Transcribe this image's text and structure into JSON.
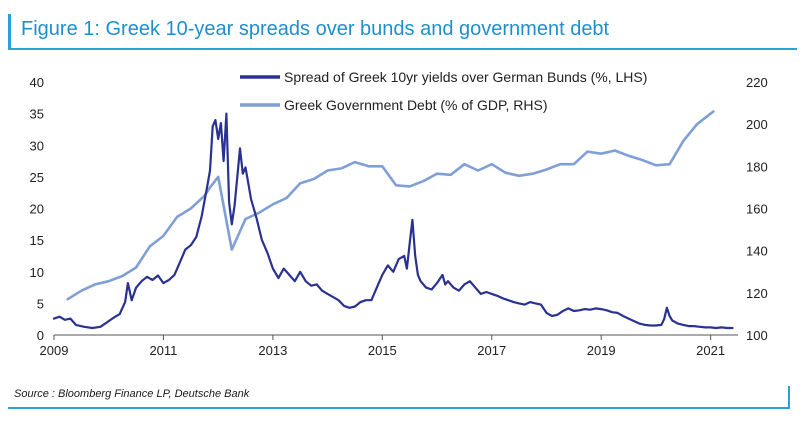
{
  "figure": {
    "title": "Figure 1: Greek 10-year spreads over bunds and government debt",
    "source": "Source : Bloomberg Finance LP, Deutsche Bank"
  },
  "chart_data": {
    "type": "line",
    "x_ticks": [
      "2009",
      "2011",
      "2013",
      "2015",
      "2017",
      "2019",
      "2021"
    ],
    "x_range": [
      2009.0,
      2021.5
    ],
    "y_left": {
      "ticks": [
        "0",
        "5",
        "10",
        "15",
        "20",
        "25",
        "30",
        "35",
        "40"
      ],
      "range": [
        0,
        40
      ]
    },
    "y_right": {
      "ticks": [
        "100",
        "120",
        "140",
        "160",
        "180",
        "200",
        "220"
      ],
      "range": [
        100,
        220
      ]
    },
    "grid": false,
    "legend_position": "top-right",
    "series": [
      {
        "name": "Spread of Greek 10yr yields over German Bunds (%, LHS)",
        "axis": "left",
        "color": "#2a3291",
        "points": [
          [
            2009.0,
            2.6
          ],
          [
            2009.1,
            2.9
          ],
          [
            2009.2,
            2.4
          ],
          [
            2009.3,
            2.6
          ],
          [
            2009.4,
            1.6
          ],
          [
            2009.55,
            1.3
          ],
          [
            2009.7,
            1.1
          ],
          [
            2009.85,
            1.3
          ],
          [
            2010.0,
            2.2
          ],
          [
            2010.1,
            2.8
          ],
          [
            2010.2,
            3.3
          ],
          [
            2010.3,
            5.2
          ],
          [
            2010.35,
            8.2
          ],
          [
            2010.42,
            5.5
          ],
          [
            2010.5,
            7.5
          ],
          [
            2010.6,
            8.5
          ],
          [
            2010.7,
            9.2
          ],
          [
            2010.8,
            8.7
          ],
          [
            2010.9,
            9.4
          ],
          [
            2011.0,
            8.2
          ],
          [
            2011.1,
            8.7
          ],
          [
            2011.2,
            9.5
          ],
          [
            2011.3,
            11.5
          ],
          [
            2011.4,
            13.5
          ],
          [
            2011.5,
            14.2
          ],
          [
            2011.6,
            15.5
          ],
          [
            2011.7,
            18.8
          ],
          [
            2011.8,
            23.5
          ],
          [
            2011.85,
            26.0
          ],
          [
            2011.9,
            33.0
          ],
          [
            2011.95,
            34.0
          ],
          [
            2012.0,
            31.0
          ],
          [
            2012.05,
            33.5
          ],
          [
            2012.1,
            27.5
          ],
          [
            2012.15,
            35.0
          ],
          [
            2012.2,
            21.0
          ],
          [
            2012.25,
            17.5
          ],
          [
            2012.3,
            20.5
          ],
          [
            2012.35,
            25.0
          ],
          [
            2012.4,
            29.5
          ],
          [
            2012.45,
            25.5
          ],
          [
            2012.5,
            26.5
          ],
          [
            2012.55,
            24.0
          ],
          [
            2012.6,
            21.5
          ],
          [
            2012.7,
            18.5
          ],
          [
            2012.8,
            15.0
          ],
          [
            2012.9,
            13.0
          ],
          [
            2013.0,
            10.5
          ],
          [
            2013.1,
            9.0
          ],
          [
            2013.2,
            10.5
          ],
          [
            2013.3,
            9.5
          ],
          [
            2013.4,
            8.5
          ],
          [
            2013.5,
            10.0
          ],
          [
            2013.6,
            8.5
          ],
          [
            2013.7,
            7.8
          ],
          [
            2013.8,
            8.0
          ],
          [
            2013.9,
            7.0
          ],
          [
            2014.0,
            6.5
          ],
          [
            2014.1,
            6.0
          ],
          [
            2014.2,
            5.5
          ],
          [
            2014.3,
            4.6
          ],
          [
            2014.4,
            4.3
          ],
          [
            2014.5,
            4.5
          ],
          [
            2014.6,
            5.2
          ],
          [
            2014.7,
            5.5
          ],
          [
            2014.8,
            5.5
          ],
          [
            2014.9,
            7.5
          ],
          [
            2015.0,
            9.5
          ],
          [
            2015.1,
            11.0
          ],
          [
            2015.2,
            10.0
          ],
          [
            2015.3,
            12.0
          ],
          [
            2015.4,
            12.5
          ],
          [
            2015.45,
            10.5
          ],
          [
            2015.5,
            14.5
          ],
          [
            2015.55,
            18.2
          ],
          [
            2015.6,
            12.5
          ],
          [
            2015.65,
            9.5
          ],
          [
            2015.7,
            8.5
          ],
          [
            2015.8,
            7.5
          ],
          [
            2015.9,
            7.2
          ],
          [
            2016.0,
            8.2
          ],
          [
            2016.1,
            9.5
          ],
          [
            2016.15,
            8.0
          ],
          [
            2016.2,
            8.5
          ],
          [
            2016.3,
            7.5
          ],
          [
            2016.4,
            7.0
          ],
          [
            2016.5,
            8.0
          ],
          [
            2016.6,
            8.5
          ],
          [
            2016.7,
            7.5
          ],
          [
            2016.8,
            6.5
          ],
          [
            2016.9,
            6.8
          ],
          [
            2017.0,
            6.5
          ],
          [
            2017.1,
            6.2
          ],
          [
            2017.2,
            5.8
          ],
          [
            2017.3,
            5.5
          ],
          [
            2017.4,
            5.2
          ],
          [
            2017.5,
            5.0
          ],
          [
            2017.6,
            4.8
          ],
          [
            2017.7,
            5.2
          ],
          [
            2017.8,
            5.0
          ],
          [
            2017.9,
            4.8
          ],
          [
            2018.0,
            3.5
          ],
          [
            2018.1,
            3.0
          ],
          [
            2018.2,
            3.2
          ],
          [
            2018.3,
            3.8
          ],
          [
            2018.4,
            4.2
          ],
          [
            2018.5,
            3.8
          ],
          [
            2018.6,
            3.9
          ],
          [
            2018.7,
            4.1
          ],
          [
            2018.8,
            4.0
          ],
          [
            2018.9,
            4.2
          ],
          [
            2019.0,
            4.1
          ],
          [
            2019.1,
            3.9
          ],
          [
            2019.2,
            3.6
          ],
          [
            2019.3,
            3.5
          ],
          [
            2019.4,
            3.0
          ],
          [
            2019.5,
            2.6
          ],
          [
            2019.6,
            2.2
          ],
          [
            2019.7,
            1.8
          ],
          [
            2019.8,
            1.6
          ],
          [
            2019.9,
            1.5
          ],
          [
            2020.0,
            1.5
          ],
          [
            2020.1,
            1.6
          ],
          [
            2020.15,
            2.5
          ],
          [
            2020.2,
            4.3
          ],
          [
            2020.25,
            3.0
          ],
          [
            2020.3,
            2.3
          ],
          [
            2020.4,
            1.8
          ],
          [
            2020.5,
            1.6
          ],
          [
            2020.6,
            1.4
          ],
          [
            2020.7,
            1.4
          ],
          [
            2020.8,
            1.3
          ],
          [
            2020.9,
            1.2
          ],
          [
            2021.0,
            1.2
          ],
          [
            2021.1,
            1.1
          ],
          [
            2021.2,
            1.2
          ],
          [
            2021.3,
            1.1
          ],
          [
            2021.4,
            1.1
          ]
        ]
      },
      {
        "name": "Greek Government Debt (% of GDP, RHS)",
        "axis": "right",
        "color": "#7f9fd6",
        "points": [
          [
            2009.25,
            117.0
          ],
          [
            2009.5,
            121.0
          ],
          [
            2009.75,
            124.0
          ],
          [
            2010.0,
            125.5
          ],
          [
            2010.25,
            128.0
          ],
          [
            2010.5,
            132.0
          ],
          [
            2010.75,
            142.0
          ],
          [
            2011.0,
            147.0
          ],
          [
            2011.25,
            156.0
          ],
          [
            2011.5,
            160.0
          ],
          [
            2011.75,
            166.0
          ],
          [
            2011.85,
            170.0
          ],
          [
            2012.0,
            175.0
          ],
          [
            2012.25,
            140.5
          ],
          [
            2012.5,
            155.0
          ],
          [
            2012.75,
            158.0
          ],
          [
            2013.0,
            162.0
          ],
          [
            2013.25,
            165.0
          ],
          [
            2013.5,
            172.0
          ],
          [
            2013.75,
            174.0
          ],
          [
            2014.0,
            178.0
          ],
          [
            2014.25,
            179.0
          ],
          [
            2014.5,
            182.0
          ],
          [
            2014.75,
            180.0
          ],
          [
            2015.0,
            180.0
          ],
          [
            2015.25,
            171.0
          ],
          [
            2015.5,
            170.5
          ],
          [
            2015.75,
            173.0
          ],
          [
            2016.0,
            176.5
          ],
          [
            2016.25,
            176.0
          ],
          [
            2016.5,
            181.0
          ],
          [
            2016.75,
            178.0
          ],
          [
            2017.0,
            181.0
          ],
          [
            2017.25,
            177.0
          ],
          [
            2017.5,
            175.5
          ],
          [
            2017.75,
            176.5
          ],
          [
            2018.0,
            178.5
          ],
          [
            2018.25,
            181.0
          ],
          [
            2018.5,
            181.0
          ],
          [
            2018.75,
            187.0
          ],
          [
            2019.0,
            186.0
          ],
          [
            2019.25,
            187.5
          ],
          [
            2019.5,
            185.0
          ],
          [
            2019.75,
            183.0
          ],
          [
            2020.0,
            180.5
          ],
          [
            2020.25,
            181.0
          ],
          [
            2020.5,
            192.0
          ],
          [
            2020.75,
            200.0
          ],
          [
            2021.0,
            205.0
          ],
          [
            2021.05,
            206.0
          ]
        ]
      }
    ]
  }
}
